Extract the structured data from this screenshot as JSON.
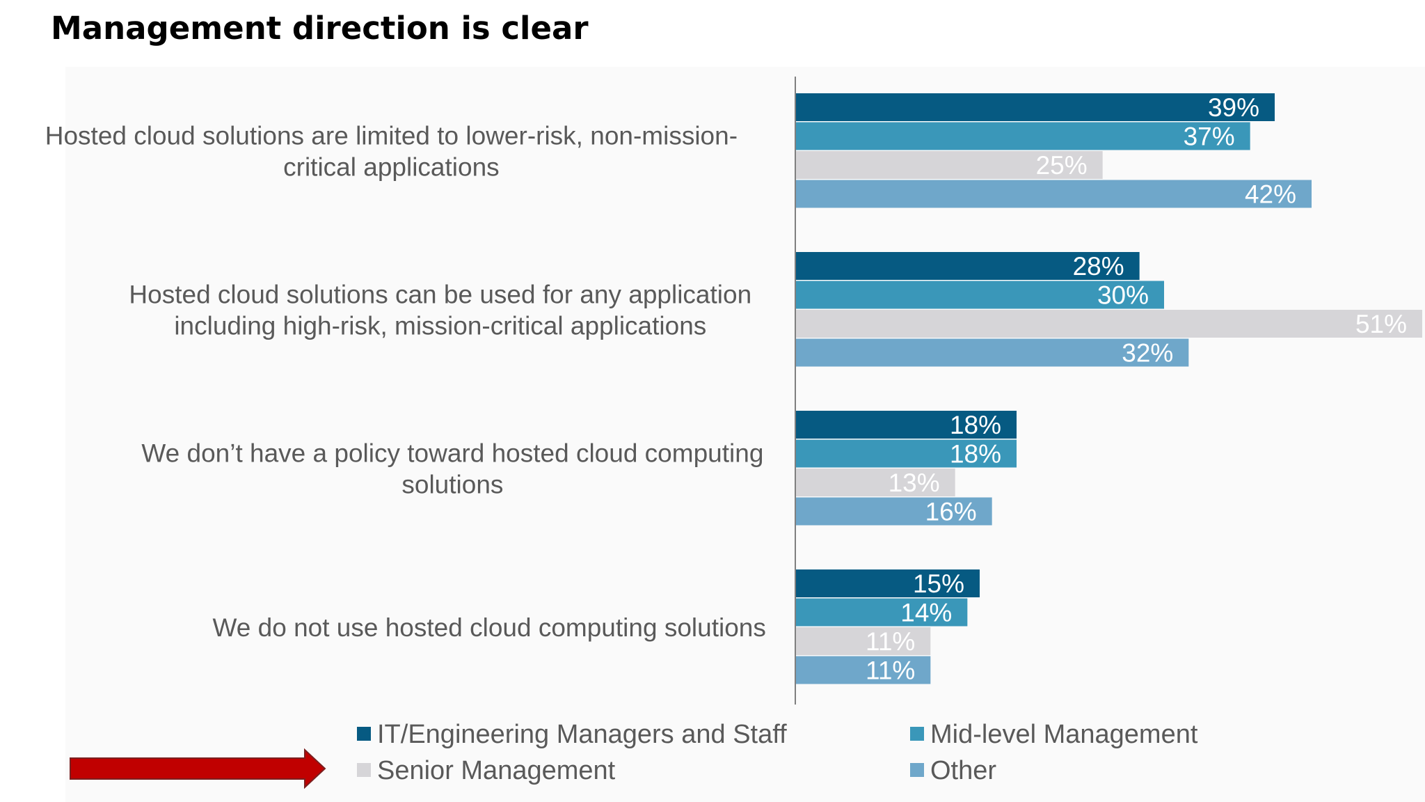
{
  "page": {
    "title": "Management direction is clear"
  },
  "chart_data": {
    "type": "bar",
    "orientation": "horizontal",
    "title": "Management direction is clear",
    "categories": [
      [
        "Hosted cloud solutions are limited to lower-risk, non-mission-",
        "critical applications"
      ],
      [
        "Hosted cloud solutions can be used for any application",
        "including high-risk, mission-critical applications"
      ],
      [
        "We don’t have a policy toward hosted cloud computing",
        "solutions"
      ],
      [
        "We do not use hosted cloud computing solutions"
      ]
    ],
    "series": [
      {
        "name": "IT/Engineering Managers and Staff",
        "color": "#065a82",
        "values": [
          39,
          28,
          18,
          15
        ],
        "labels": [
          "39%",
          "28%",
          "18%",
          "15%"
        ]
      },
      {
        "name": "Mid-level Management",
        "color": "#3a97b9",
        "values": [
          37,
          30,
          18,
          14
        ],
        "labels": [
          "37%",
          "30%",
          "18%",
          "14%"
        ]
      },
      {
        "name": "Senior Management",
        "color": "#d6d5d8",
        "values": [
          25,
          51,
          13,
          11
        ],
        "labels": [
          "25%",
          "51%",
          "13%",
          "11%"
        ]
      },
      {
        "name": "Other",
        "color": "#6fa7ca",
        "values": [
          42,
          32,
          16,
          11
        ],
        "labels": [
          "42%",
          "32%",
          "16%",
          "11%"
        ]
      }
    ],
    "xlim": [
      0,
      51
    ],
    "value_format": "percent",
    "legend_position": "bottom",
    "xlabel": "",
    "ylabel": "",
    "grid": false
  },
  "annotations": {
    "arrow_color": "#c00000",
    "arrow_points_to": "Senior Management"
  }
}
